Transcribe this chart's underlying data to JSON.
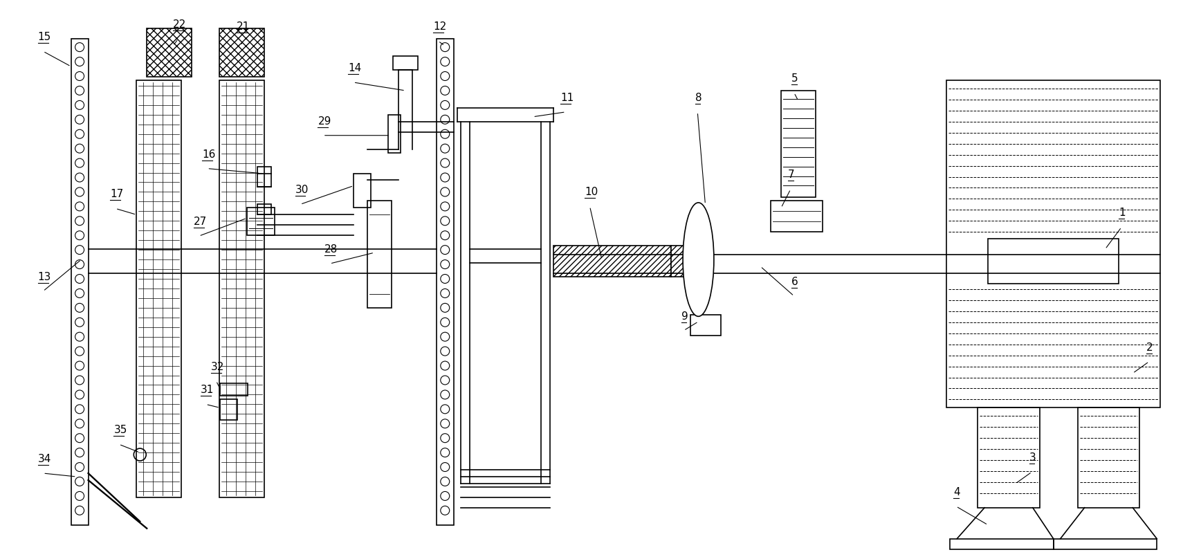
{
  "bg_color": "#ffffff",
  "line_color": "#000000",
  "lw": 1.2,
  "fig_width": 17.24,
  "fig_height": 8.08,
  "dpi": 100
}
